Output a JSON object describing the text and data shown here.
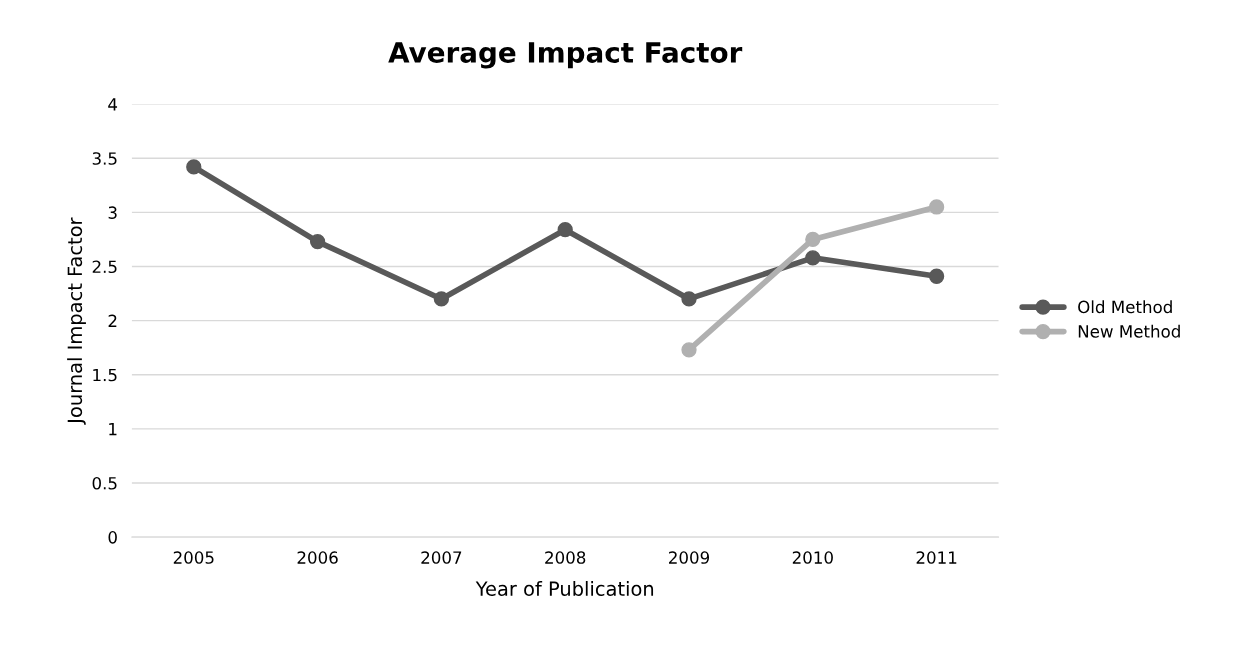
{
  "chart_data": {
    "type": "line",
    "title": "Average Impact Factor",
    "xlabel": "Year of Publication",
    "ylabel": "Journal Impact Factor",
    "categories": [
      "2005",
      "2006",
      "2007",
      "2008",
      "2009",
      "2010",
      "2011"
    ],
    "series": [
      {
        "name": "Old Method",
        "color": "#595959",
        "values": [
          3.42,
          2.73,
          2.2,
          2.84,
          2.2,
          2.58,
          2.41
        ]
      },
      {
        "name": "New Method",
        "color": "#b0b0b0",
        "values": [
          null,
          null,
          null,
          null,
          1.73,
          2.75,
          3.05
        ]
      }
    ],
    "ylim": [
      0,
      4
    ],
    "yticks": [
      0,
      0.5,
      1,
      1.5,
      2,
      2.5,
      3,
      3.5,
      4
    ],
    "grid": "y",
    "legend": "right",
    "marker": "circle",
    "line_style": "solid"
  }
}
